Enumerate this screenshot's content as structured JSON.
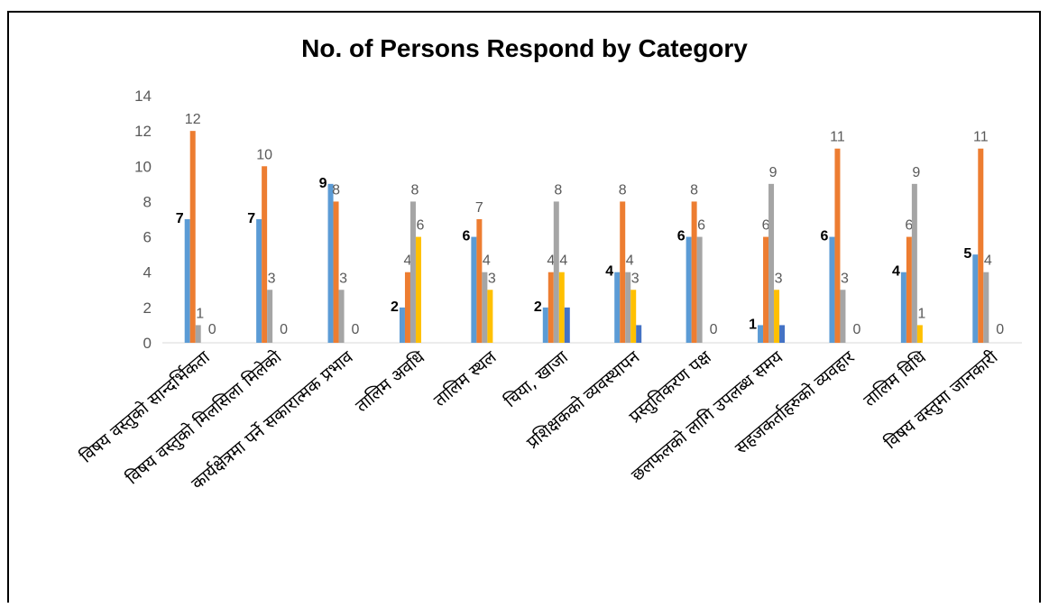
{
  "chart_data": {
    "type": "bar",
    "title": "No. of Persons Respond by Category",
    "xlabel": "",
    "ylabel": "",
    "ylim": [
      0,
      14
    ],
    "yticks": [
      0,
      2,
      4,
      6,
      8,
      10,
      12,
      14
    ],
    "grid": false,
    "legend": "none",
    "categories": [
      "विषय वस्तुको सान्दर्भिकता",
      "विषय वस्तुको मिलसिला मिलेको",
      "कार्यक्षेत्रमा पर्ने सकारात्मक प्रभाव",
      "तालिम अवधि",
      "तालिम स्थल",
      "चिया, खाजा",
      "प्रशिक्षकको व्यवस्थापन",
      "प्रस्तुतिकरण पक्ष",
      "छलफलको लागि उपलब्ध समय",
      "सहजकर्ताहरुको व्यवहार",
      "तालिम विधि",
      "विषय वस्तुमा जानकारी"
    ],
    "series": [
      {
        "color": "#5B9BD5",
        "values": [
          7,
          7,
          9,
          2,
          6,
          2,
          4,
          6,
          1,
          6,
          4,
          5
        ],
        "labels": [
          "7",
          "7",
          "9",
          "2",
          "6",
          "2",
          "4",
          "6",
          "1",
          "6",
          "4",
          "5"
        ]
      },
      {
        "color": "#ED7D31",
        "values": [
          12,
          10,
          8,
          4,
          7,
          4,
          8,
          8,
          6,
          11,
          6,
          11
        ],
        "labels": [
          "12",
          "10",
          "8",
          "4",
          "7",
          "4",
          "8",
          "8",
          "6",
          "11",
          "6",
          "11"
        ]
      },
      {
        "color": "#A5A5A5",
        "values": [
          1,
          3,
          3,
          8,
          4,
          8,
          4,
          6,
          9,
          3,
          9,
          4
        ],
        "labels": [
          "1",
          "3",
          "3",
          "8",
          "4",
          "8",
          "4",
          "6",
          "9",
          "3",
          "9",
          "4"
        ]
      },
      {
        "color": "#FFC000",
        "values": [
          0,
          0,
          0,
          6,
          3,
          4,
          3,
          0,
          3,
          0,
          1,
          0
        ],
        "labels": [
          "0",
          "0",
          "0",
          "6",
          "3",
          "4",
          "3",
          "0",
          "3",
          "0",
          "1",
          "0"
        ]
      },
      {
        "color": "#4472C4",
        "values": [
          0,
          0,
          0,
          0,
          0,
          2,
          1,
          0,
          1,
          0,
          0,
          0
        ],
        "labels": [
          "",
          "",
          "",
          "",
          "",
          "",
          "",
          "",
          "",
          "",
          "",
          ""
        ]
      }
    ]
  }
}
